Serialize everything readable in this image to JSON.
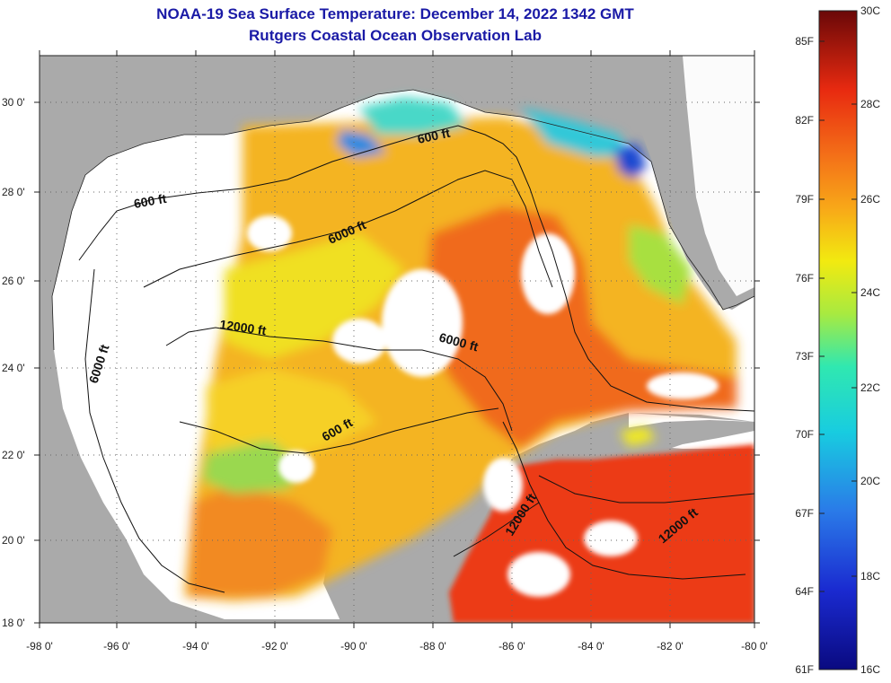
{
  "header": {
    "title": "NOAA-19 Sea Surface Temperature:  December 14, 2022 1342 GMT",
    "subtitle": "Rutgers Coastal Ocean Observation Lab"
  },
  "map": {
    "lon_ticks": [
      "-98 0'",
      "-96 0'",
      "-94 0'",
      "-92 0'",
      "-90 0'",
      "-88 0'",
      "-86 0'",
      "-84 0'",
      "-82 0'",
      "-80 0'"
    ],
    "lat_ticks": [
      "30 0'",
      "28 0'",
      "26 0'",
      "24 0'",
      "22 0'",
      "20 0'",
      "18 0'"
    ],
    "contour_labels": [
      "600 ft",
      "600 ft",
      "600 ft",
      "6000 ft",
      "6000 ft",
      "6000 ft",
      "12000 ft",
      "12000 ft",
      "12000 ft"
    ],
    "land_color": "#aaaaaa",
    "cloud_color": "#ffffff"
  },
  "colorbar": {
    "fahrenheit_labels": [
      "85F",
      "82F",
      "79F",
      "76F",
      "73F",
      "70F",
      "67F",
      "64F",
      "61F"
    ],
    "celsius_labels": [
      "30C",
      "28C",
      "26C",
      "24C",
      "22C",
      "20C",
      "18C",
      "16C"
    ]
  }
}
